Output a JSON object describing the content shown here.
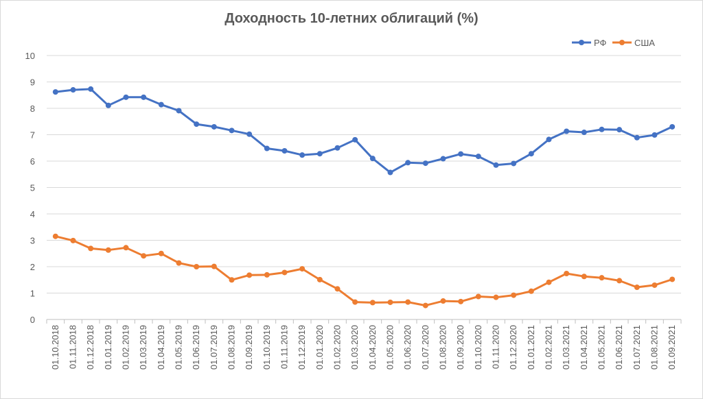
{
  "chart_data": {
    "type": "line",
    "title": "Доходность 10-летних облигаций (%)",
    "xlabel": "",
    "ylabel": "",
    "ylim": [
      0,
      10
    ],
    "yticks": [
      "0",
      "1",
      "2",
      "3",
      "4",
      "5",
      "6",
      "7",
      "8",
      "9",
      "10"
    ],
    "grid": true,
    "legend_position": "top-right",
    "categories": [
      "01.10.2018",
      "01.11.2018",
      "01.12.2018",
      "01.01.2019",
      "01.02.2019",
      "01.03.2019",
      "01.04.2019",
      "01.05.2019",
      "01.06.2019",
      "01.07.2019",
      "01.08.2019",
      "01.09.2019",
      "01.10.2019",
      "01.11.2019",
      "01.12.2019",
      "01.01.2020",
      "01.02.2020",
      "01.03.2020",
      "01.04.2020",
      "01.05.2020",
      "01.06.2020",
      "01.07.2020",
      "01.08.2020",
      "01.09.2020",
      "01.10.2020",
      "01.11.2020",
      "01.12.2020",
      "01.01.2021",
      "01.02.2021",
      "01.03.2021",
      "01.04.2021",
      "01.05.2021",
      "01.06.2021",
      "01.07.2021",
      "01.08.2021",
      "01.09.2021"
    ],
    "series": [
      {
        "name": "РФ",
        "color": "#4472c4",
        "values": [
          8.62,
          8.7,
          8.73,
          8.11,
          8.42,
          8.42,
          8.14,
          7.91,
          7.4,
          7.3,
          7.16,
          7.02,
          6.48,
          6.39,
          6.23,
          6.28,
          6.5,
          6.81,
          6.1,
          5.57,
          5.94,
          5.92,
          6.09,
          6.27,
          6.18,
          5.85,
          5.91,
          6.28,
          6.82,
          7.13,
          7.09,
          7.2,
          7.19,
          6.89,
          6.99,
          7.3
        ]
      },
      {
        "name": "США",
        "color": "#ed7d31",
        "values": [
          3.15,
          2.99,
          2.69,
          2.63,
          2.72,
          2.41,
          2.5,
          2.14,
          2.0,
          2.01,
          1.5,
          1.68,
          1.69,
          1.78,
          1.92,
          1.51,
          1.16,
          0.66,
          0.64,
          0.65,
          0.66,
          0.53,
          0.7,
          0.68,
          0.87,
          0.84,
          0.92,
          1.07,
          1.41,
          1.74,
          1.63,
          1.58,
          1.47,
          1.22,
          1.3,
          1.52
        ]
      }
    ]
  }
}
